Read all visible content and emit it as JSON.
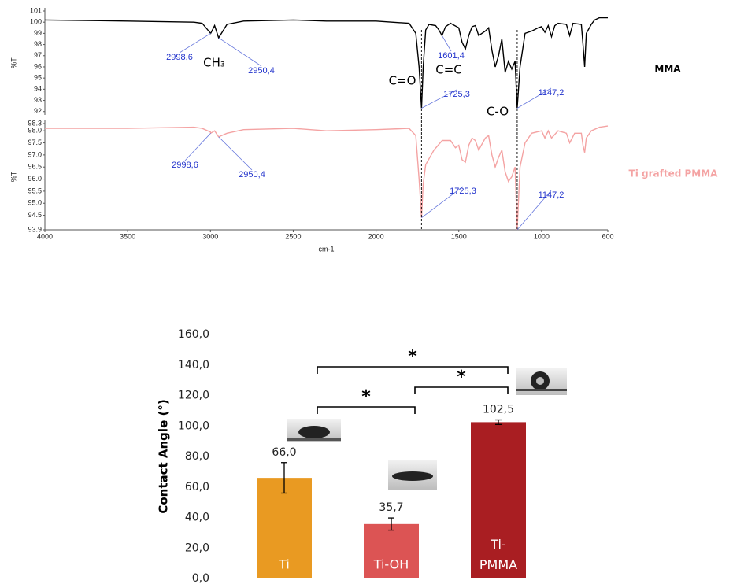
{
  "chart_data": [
    {
      "type": "line",
      "ylabel": "%T",
      "xlim": [
        4000,
        600
      ],
      "ylim": [
        91.7,
        101
      ],
      "yticks": [
        92,
        93,
        94,
        95,
        96,
        97,
        98,
        99,
        100,
        101
      ],
      "series": [
        {
          "name": "MMA",
          "color": "#000000",
          "x": [
            4000,
            3500,
            3100,
            3050,
            2998.6,
            2975,
            2950.4,
            2900,
            2800,
            2500,
            2300,
            2000,
            1800,
            1760,
            1740,
            1725.3,
            1715,
            1700,
            1680,
            1640,
            1620,
            1601.4,
            1580,
            1550,
            1500,
            1480,
            1460,
            1440,
            1420,
            1400,
            1380,
            1340,
            1320,
            1300,
            1280,
            1260,
            1240,
            1220,
            1200,
            1180,
            1160,
            1147.2,
            1130,
            1100,
            1060,
            1020,
            1000,
            980,
            960,
            940,
            920,
            900,
            850,
            830,
            810,
            760,
            750,
            740,
            730,
            700,
            680,
            650,
            600
          ],
          "values": [
            100.2,
            100.1,
            100.0,
            99.9,
            99.0,
            99.7,
            98.6,
            99.8,
            100.1,
            100.2,
            100.1,
            100.1,
            99.9,
            99.0,
            96.0,
            92.3,
            96.0,
            99.3,
            99.8,
            99.7,
            99.3,
            98.8,
            99.6,
            99.9,
            99.5,
            98.2,
            97.6,
            98.8,
            99.6,
            99.7,
            98.8,
            99.2,
            99.5,
            97.5,
            96.0,
            97.0,
            98.5,
            95.5,
            96.5,
            95.8,
            96.5,
            92.3,
            96.0,
            99.0,
            99.2,
            99.5,
            99.6,
            99.1,
            99.7,
            98.7,
            99.7,
            99.9,
            99.8,
            98.8,
            99.9,
            99.8,
            98.0,
            96.0,
            99.0,
            99.8,
            100.2,
            100.4,
            100.4
          ],
          "annotations": [
            {
              "label": "2998,6",
              "x": 2998.6
            },
            {
              "label": "2950,4",
              "x": 2950.4
            },
            {
              "label": "1601,4",
              "x": 1601.4
            },
            {
              "label": "1725,3",
              "x": 1725.3
            },
            {
              "label": "1147,2",
              "x": 1147.2
            }
          ]
        }
      ],
      "group_labels": [
        "CH₃",
        "C=O",
        "C=C",
        "C-O"
      ]
    },
    {
      "type": "line",
      "ylabel": "%T",
      "xlabel": "cm-1",
      "xlim": [
        4000,
        600
      ],
      "ylim": [
        93.9,
        98.3
      ],
      "xticks": [
        4000,
        3500,
        3000,
        2500,
        2000,
        1500,
        1000,
        600
      ],
      "yticks": [
        93.9,
        94.5,
        {
          "value": 95,
          "label": "95.0"
        },
        95.5,
        {
          "value": 96,
          "label": "96.0"
        },
        96.5,
        {
          "value": 97,
          "label": "97.0"
        },
        97.5,
        {
          "value": 98,
          "label": "98.0"
        },
        98.3
      ],
      "series": [
        {
          "name": "Ti grafted PMMA",
          "color": "#f4a3a3",
          "x": [
            4000,
            3500,
            3100,
            3050,
            3000,
            2998.6,
            2975,
            2950.4,
            2900,
            2800,
            2500,
            2300,
            2000,
            1800,
            1760,
            1740,
            1725.3,
            1715,
            1700,
            1650,
            1600,
            1550,
            1520,
            1500,
            1480,
            1460,
            1440,
            1420,
            1400,
            1380,
            1340,
            1320,
            1300,
            1280,
            1260,
            1240,
            1220,
            1200,
            1180,
            1160,
            1147.2,
            1130,
            1100,
            1060,
            1000,
            980,
            960,
            940,
            900,
            850,
            830,
            800,
            760,
            750,
            740,
            730,
            700,
            650,
            600
          ],
          "values": [
            98.1,
            98.1,
            98.15,
            98.1,
            97.95,
            97.9,
            98.0,
            97.75,
            97.9,
            98.05,
            98.1,
            98.0,
            98.05,
            98.1,
            97.8,
            96.0,
            94.4,
            95.8,
            96.6,
            97.2,
            97.6,
            97.6,
            97.3,
            97.4,
            96.8,
            96.7,
            97.4,
            97.7,
            97.6,
            97.2,
            97.7,
            97.8,
            97.0,
            96.5,
            96.9,
            97.2,
            96.3,
            95.9,
            96.1,
            96.5,
            93.9,
            96.5,
            97.5,
            97.9,
            98.0,
            97.7,
            98.0,
            97.7,
            98.0,
            97.9,
            97.5,
            97.9,
            97.9,
            97.4,
            97.1,
            97.7,
            98.0,
            98.15,
            98.2
          ],
          "annotations": [
            {
              "label": "2998,6",
              "x": 2998.6
            },
            {
              "label": "2950,4",
              "x": 2950.4
            },
            {
              "label": "1725,3",
              "x": 1725.3
            },
            {
              "label": "1147,2",
              "x": 1147.2
            }
          ]
        }
      ]
    },
    {
      "type": "bar",
      "ylabel": "Contact Angle (°)",
      "ylim": [
        0,
        160
      ],
      "yticks": [
        {
          "value": 0,
          "label": "0,0"
        },
        {
          "value": 20,
          "label": "20,0"
        },
        {
          "value": 40,
          "label": "40,0"
        },
        {
          "value": 60,
          "label": "60,0"
        },
        {
          "value": 80,
          "label": "80,0"
        },
        {
          "value": 100,
          "label": "100,0"
        },
        {
          "value": 120,
          "label": "120,0"
        },
        {
          "value": 140,
          "label": "140,0"
        },
        {
          "value": 160,
          "label": "160,0"
        }
      ],
      "categories": [
        "Ti",
        "Ti-OH",
        "Ti-PMMA"
      ],
      "values": [
        66.0,
        35.7,
        102.5
      ],
      "value_labels": [
        "66,0",
        "35,7",
        "102,5"
      ],
      "errors": [
        10,
        4,
        1.5
      ],
      "colors": [
        "#e99a22",
        "#dc5454",
        "#a91e22"
      ],
      "significance": [
        {
          "between": [
            "Ti",
            "Ti-OH"
          ],
          "label": "*"
        },
        {
          "between": [
            "Ti-OH",
            "Ti-PMMA"
          ],
          "label": "*"
        },
        {
          "between": [
            "Ti",
            "Ti-PMMA"
          ],
          "label": "*"
        }
      ]
    }
  ]
}
